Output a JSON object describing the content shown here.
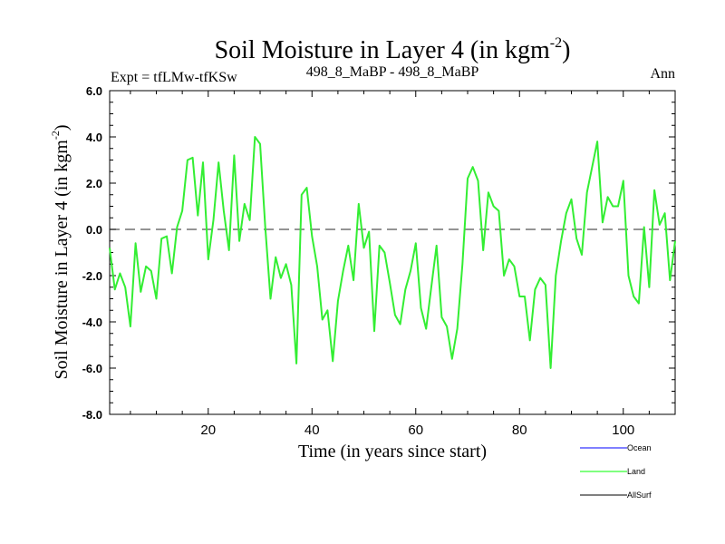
{
  "chart_data": {
    "type": "line",
    "title": "Soil Moisture in Layer 4 (in kgm",
    "title_sup": "-2",
    "title_close": ")",
    "subtitle_left": "Expt = tfLMw-tfKSw",
    "subtitle_center": "498_8_MaBP - 498_8_MaBP",
    "subtitle_right": "Ann",
    "xlabel": "Time (in years since start)",
    "ylabel": "Soil Moisture in Layer 4 (in kgm",
    "ylabel_sup": "-2",
    "ylabel_close": ")",
    "xlim": [
      1,
      110
    ],
    "ylim": [
      -8.0,
      6.0
    ],
    "xticks": [
      20,
      40,
      60,
      80,
      100
    ],
    "xtick_labels": [
      "20",
      "40",
      "60",
      "80",
      "100"
    ],
    "yticks": [
      -8.0,
      -6.0,
      -4.0,
      -2.0,
      0.0,
      2.0,
      4.0,
      6.0
    ],
    "ytick_labels": [
      "-8.0",
      "-6.0",
      "-4.0",
      "-2.0",
      "0.0",
      "2.0",
      "4.0",
      "6.0"
    ],
    "reference_line": 0.0,
    "legend": [
      {
        "name": "Ocean",
        "color": "#0000ff"
      },
      {
        "name": "Land",
        "color": "#00ff00"
      },
      {
        "name": "AllSurf",
        "color": "#000000"
      }
    ],
    "series": [
      {
        "name": "Land",
        "color": "#33ee33",
        "x": [
          1,
          2,
          3,
          4,
          5,
          6,
          7,
          8,
          9,
          10,
          11,
          12,
          13,
          14,
          15,
          16,
          17,
          18,
          19,
          20,
          21,
          22,
          23,
          24,
          25,
          26,
          27,
          28,
          29,
          30,
          31,
          32,
          33,
          34,
          35,
          36,
          37,
          38,
          39,
          40,
          41,
          42,
          43,
          44,
          45,
          46,
          47,
          48,
          49,
          50,
          51,
          52,
          53,
          54,
          55,
          56,
          57,
          58,
          59,
          60,
          61,
          62,
          63,
          64,
          65,
          66,
          67,
          68,
          69,
          70,
          71,
          72,
          73,
          74,
          75,
          76,
          77,
          78,
          79,
          80,
          81,
          82,
          83,
          84,
          85,
          86,
          87,
          88,
          89,
          90,
          91,
          92,
          93,
          94,
          95,
          96,
          97,
          98,
          99,
          100,
          101,
          102,
          103,
          104,
          105,
          106,
          107,
          108,
          109,
          110
        ],
        "values": [
          -0.8,
          -2.6,
          -1.9,
          -2.5,
          -4.2,
          -0.6,
          -2.7,
          -1.6,
          -1.8,
          -3.0,
          -0.4,
          -0.3,
          -1.9,
          0.1,
          0.8,
          3.0,
          3.1,
          0.6,
          2.9,
          -1.3,
          0.4,
          2.9,
          0.8,
          -0.9,
          3.2,
          -0.5,
          1.1,
          0.4,
          4.0,
          3.7,
          0.1,
          -3.0,
          -1.2,
          -2.1,
          -1.5,
          -2.4,
          -5.8,
          1.5,
          1.8,
          -0.3,
          -1.6,
          -3.9,
          -3.5,
          -5.7,
          -3.1,
          -1.8,
          -0.7,
          -2.2,
          1.1,
          -0.8,
          -0.1,
          -4.4,
          -0.7,
          -1.0,
          -2.3,
          -3.7,
          -4.1,
          -2.6,
          -1.8,
          -0.6,
          -3.4,
          -4.3,
          -2.5,
          -0.7,
          -3.8,
          -4.2,
          -5.6,
          -4.3,
          -1.5,
          2.2,
          2.7,
          2.1,
          -0.9,
          1.6,
          1.0,
          0.8,
          -2.0,
          -1.3,
          -1.6,
          -2.9,
          -2.9,
          -4.8,
          -2.6,
          -2.1,
          -2.4,
          -6.0,
          -2.0,
          -0.5,
          0.7,
          1.3,
          -0.4,
          -1.1,
          1.6,
          2.7,
          3.8,
          0.3,
          1.4,
          1.0,
          1.0,
          2.1,
          -2.0,
          -2.9,
          -3.2,
          0.1,
          -2.5,
          1.7,
          0.2,
          0.7,
          -2.2,
          -0.5
        ]
      }
    ]
  }
}
